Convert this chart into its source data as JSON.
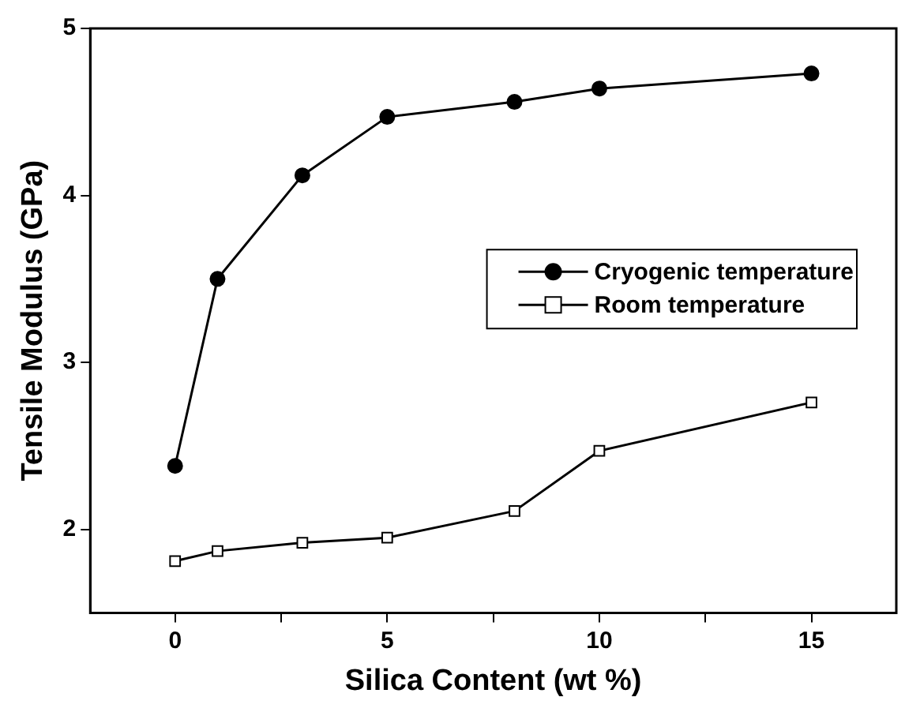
{
  "chart_data": {
    "type": "line",
    "xlabel": "Silica Content (wt %)",
    "ylabel": "Tensile Modulus (GPa)",
    "x": [
      0,
      1,
      3,
      5,
      8,
      10,
      15
    ],
    "series": [
      {
        "name": "Cryogenic temperature",
        "color": "#000000",
        "marker": "circle",
        "values": [
          2.38,
          3.5,
          4.12,
          4.47,
          4.56,
          4.64,
          4.73
        ]
      },
      {
        "name": "Room temperature",
        "color": "#000000",
        "marker": "square",
        "values": [
          1.81,
          1.87,
          1.92,
          1.95,
          2.11,
          2.47,
          2.76
        ]
      }
    ],
    "xlim": [
      -2,
      17
    ],
    "xticks": [
      0,
      {
        "value": 2.5,
        "label": null
      },
      5,
      {
        "value": 7.5,
        "label": null
      },
      10,
      {
        "value": 12.5,
        "label": null
      },
      15
    ],
    "ylim": [
      1.5,
      5
    ],
    "yticks": [
      2,
      3,
      4,
      5
    ],
    "grid": false,
    "legend": "right",
    "line_style": "solid"
  }
}
